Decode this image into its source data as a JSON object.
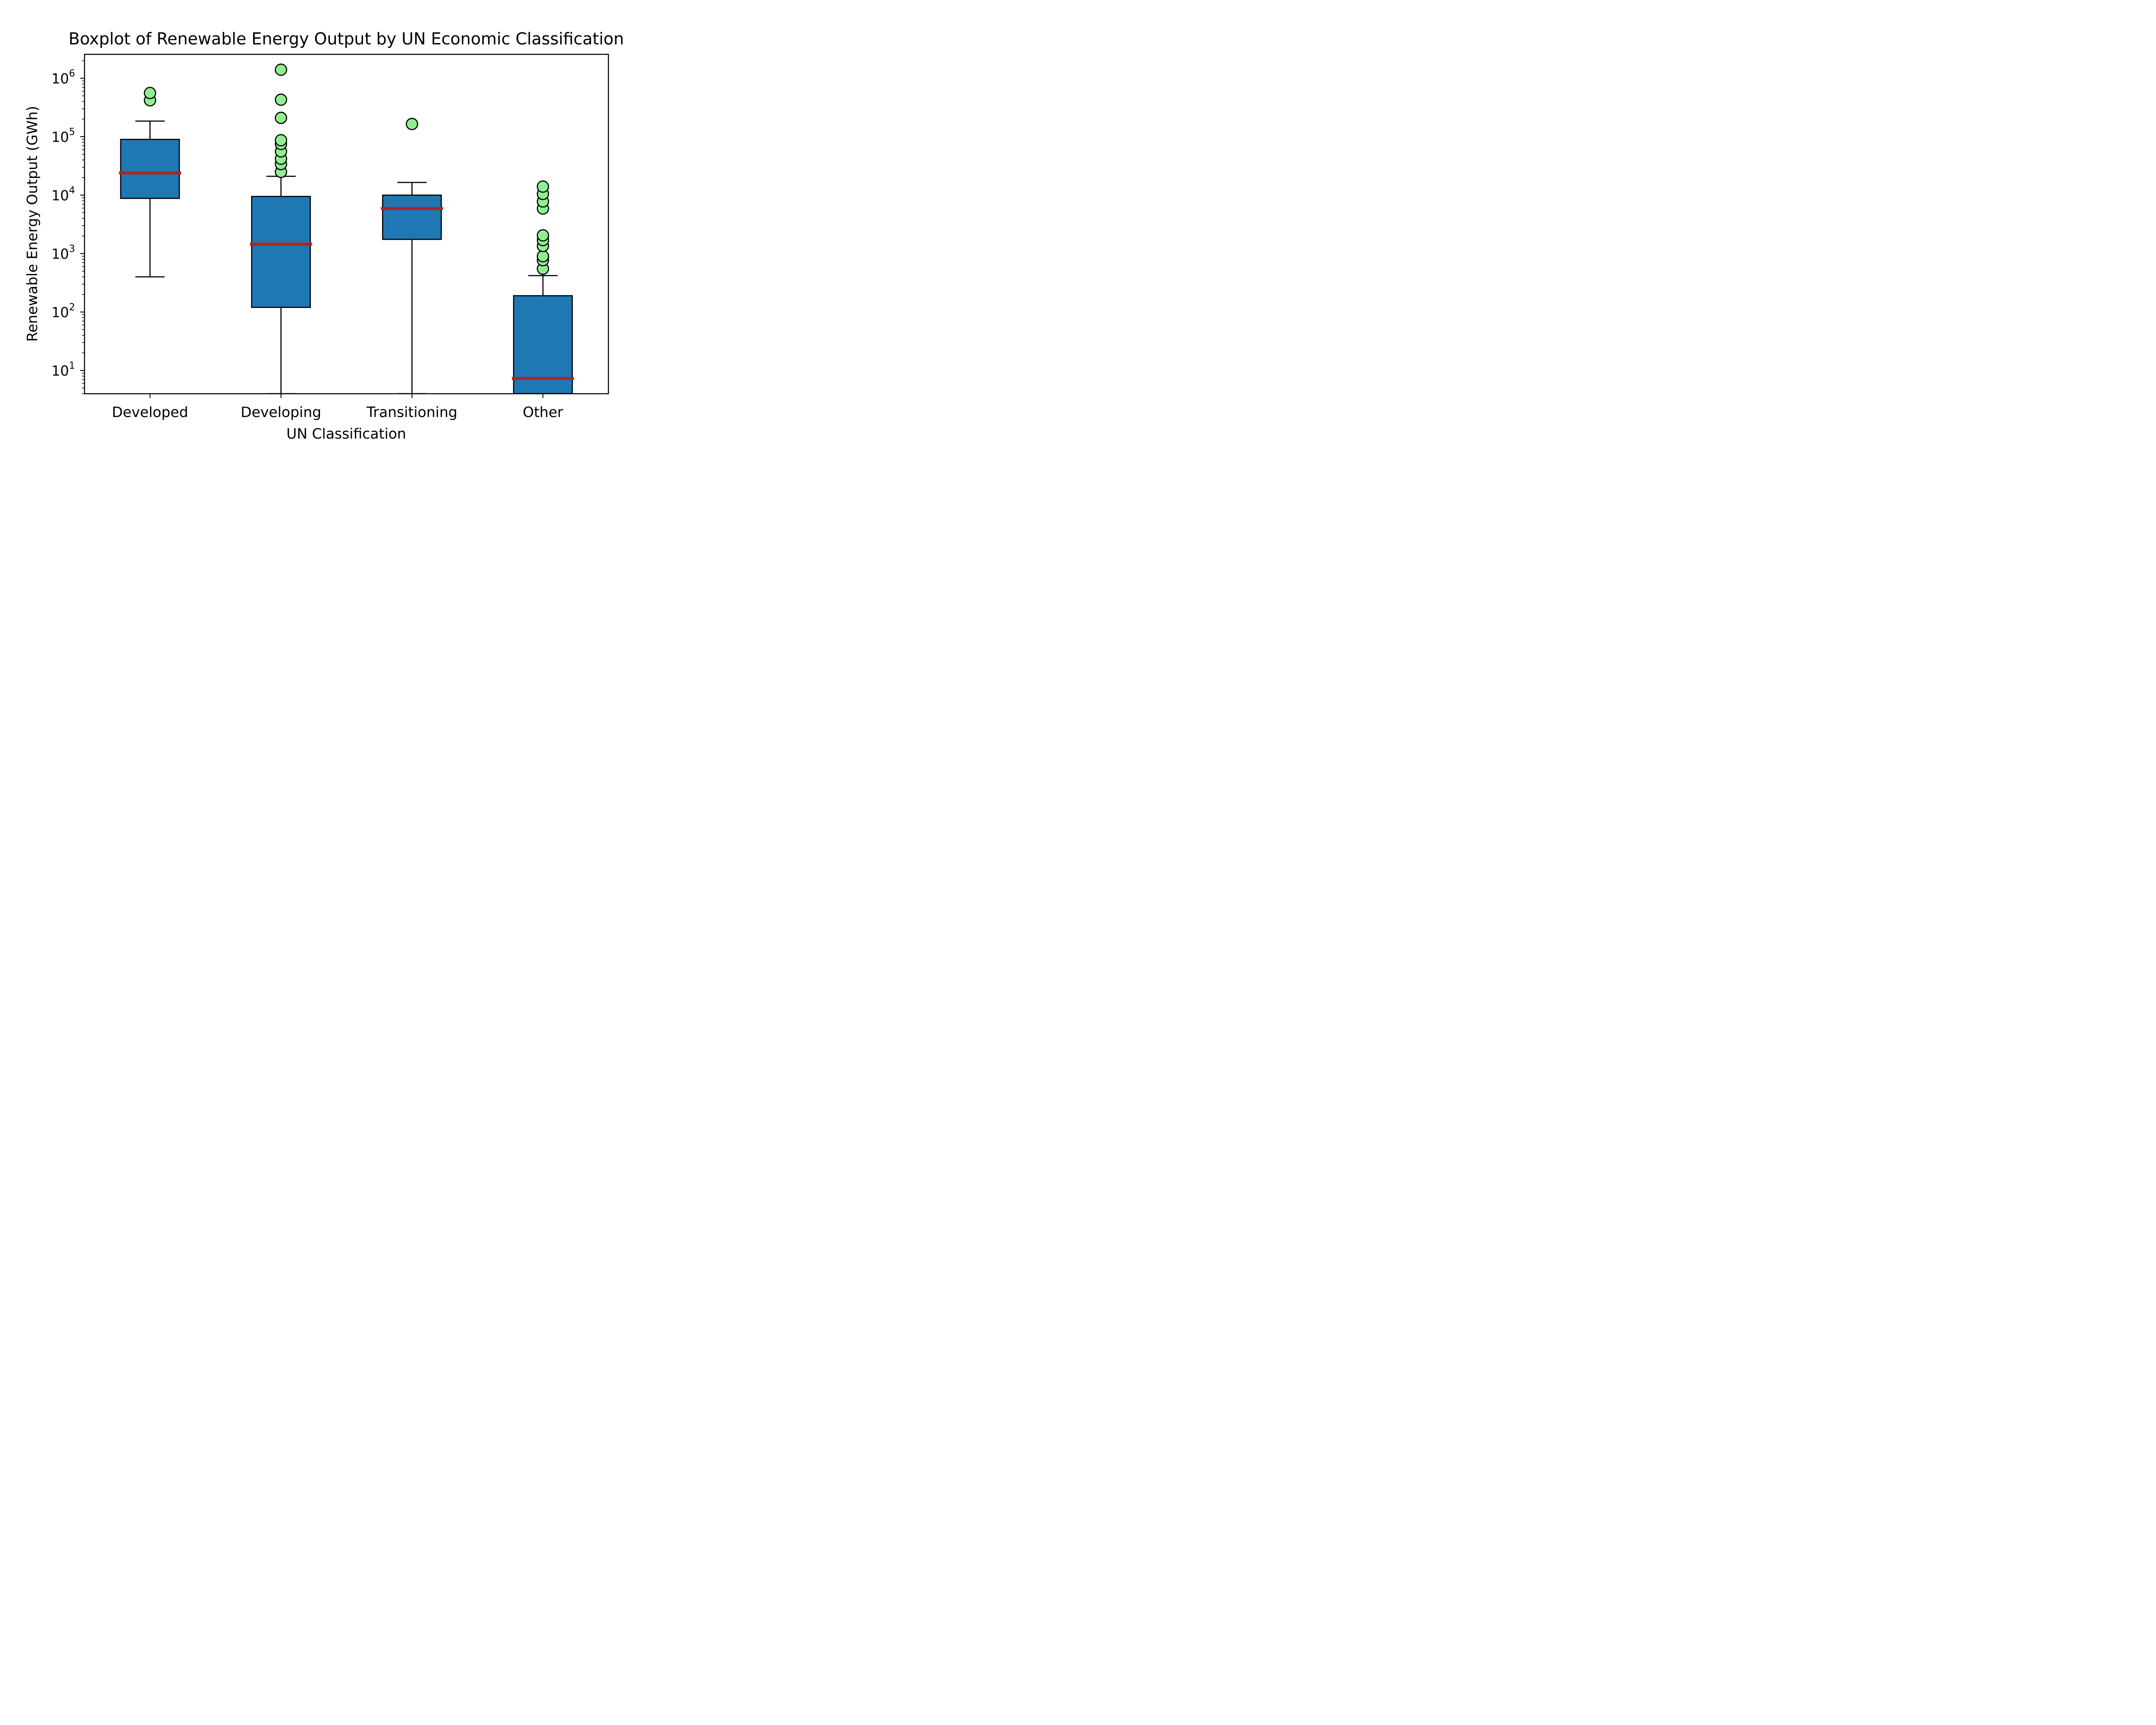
{
  "chart_data": {
    "type": "boxplot",
    "title": "Boxplot of Renewable Energy Output by UN Economic Classification",
    "xlabel": "UN Classification",
    "ylabel": "Renewable Energy Output (GWh)",
    "yscale": "log",
    "ylim": [
      4,
      2500000
    ],
    "yticks": [
      {
        "value": 10,
        "base": "10",
        "exp": "1"
      },
      {
        "value": 100,
        "base": "10",
        "exp": "2"
      },
      {
        "value": 1000,
        "base": "10",
        "exp": "3"
      },
      {
        "value": 10000,
        "base": "10",
        "exp": "4"
      },
      {
        "value": 100000,
        "base": "10",
        "exp": "5"
      },
      {
        "value": 1000000,
        "base": "10",
        "exp": "6"
      }
    ],
    "grid": false,
    "colors": {
      "box_fill": "#1f77b4",
      "median": "#b22222",
      "outlier_fill": "#90ee90",
      "edge": "#000000"
    },
    "categories": [
      "Developed",
      "Developing",
      "Transitioning",
      "Other"
    ],
    "boxes": [
      {
        "category": "Developed",
        "whisker_low": 400,
        "q1": 8800,
        "median": 24000,
        "q3": 90000,
        "whisker_high": 185000,
        "outliers": [
          420000,
          560000
        ]
      },
      {
        "category": "Developing",
        "whisker_low": 4,
        "q1": 120,
        "median": 1450,
        "q3": 9500,
        "whisker_high": 21000,
        "outliers": [
          25000,
          34000,
          42000,
          56000,
          75000,
          87000,
          210000,
          430000,
          1400000
        ]
      },
      {
        "category": "Transitioning",
        "whisker_low": 4,
        "q1": 1750,
        "median": 5900,
        "q3": 10000,
        "whisker_high": 16500,
        "outliers": [
          165000
        ]
      },
      {
        "category": "Other",
        "whisker_low": 4,
        "q1": 4,
        "median": 7.3,
        "q3": 190,
        "whisker_high": 420,
        "outliers": [
          550,
          770,
          900,
          1350,
          1700,
          2050,
          5900,
          7800,
          10500,
          14000
        ]
      }
    ]
  }
}
